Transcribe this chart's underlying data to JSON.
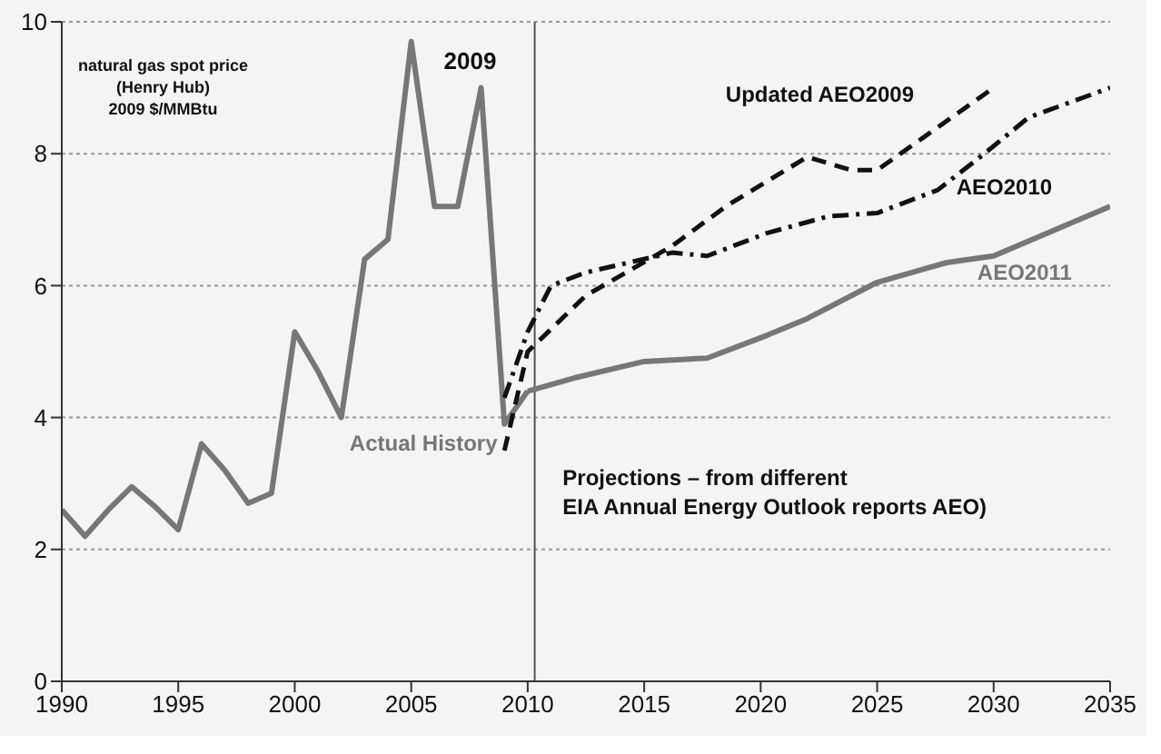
{
  "chart_data": {
    "type": "line",
    "xlim": [
      1990,
      2035
    ],
    "xticks": [
      1990,
      1995,
      2000,
      2005,
      2010,
      2015,
      2020,
      2025,
      2030,
      2035
    ],
    "ylim": [
      0,
      10
    ],
    "yticks": [
      0,
      2,
      4,
      6,
      8,
      10
    ],
    "grid": "y",
    "marker": "none",
    "legend": false,
    "series": [
      {
        "name": "Actual History",
        "color": "#777777",
        "line_style": "solid",
        "x": [
          1990,
          1991,
          1992,
          1993,
          1994,
          1995,
          1996,
          1997,
          1998,
          1999,
          2000,
          2001,
          2002,
          2003,
          2004,
          2005,
          2006,
          2007,
          2008,
          2009,
          2010
        ],
        "values": [
          2.6,
          2.2,
          2.6,
          2.95,
          2.65,
          2.3,
          3.6,
          3.2,
          2.7,
          2.85,
          5.3,
          4.7,
          4.0,
          6.4,
          6.7,
          9.7,
          7.2,
          7.2,
          9.0,
          3.9,
          4.4
        ]
      },
      {
        "name": "Updated AEO2009",
        "color": "#111111",
        "line_style": "dashed",
        "x": [
          2009,
          2010,
          2012.5,
          2016.2,
          2018.5,
          2022,
          2023.9,
          2025,
          2027.6,
          2030
        ],
        "values": [
          3.5,
          5.0,
          5.85,
          6.6,
          7.2,
          7.95,
          7.75,
          7.75,
          8.4,
          9.0
        ]
      },
      {
        "name": "AEO2010",
        "color": "#111111",
        "line_style": "dashdot",
        "x": [
          2009,
          2010,
          2011,
          2012.5,
          2016.2,
          2017.7,
          2020.3,
          2022.9,
          2025,
          2027.6,
          2029.6,
          2031.5,
          2035
        ],
        "values": [
          4.3,
          5.3,
          6.0,
          6.2,
          6.5,
          6.45,
          6.8,
          7.05,
          7.1,
          7.45,
          8.0,
          8.55,
          9.0
        ]
      },
      {
        "name": "AEO2011",
        "color": "#777777",
        "line_style": "solid",
        "x": [
          2010,
          2012,
          2015,
          2017.7,
          2020.3,
          2022,
          2025,
          2028,
          2030,
          2033,
          2035
        ],
        "values": [
          4.4,
          4.6,
          4.85,
          4.9,
          5.25,
          5.5,
          6.05,
          6.35,
          6.45,
          6.9,
          7.2
        ]
      }
    ],
    "ref_lines": [
      {
        "axis": "x",
        "value": 2010.3,
        "color": "#555555"
      }
    ],
    "annotations": [
      "natural gas spot price\n(Henry Hub)\n2009 $/MMBtu",
      "2009",
      "Projections – from different\nEIA Annual Energy Outlook reports AEO)"
    ]
  }
}
